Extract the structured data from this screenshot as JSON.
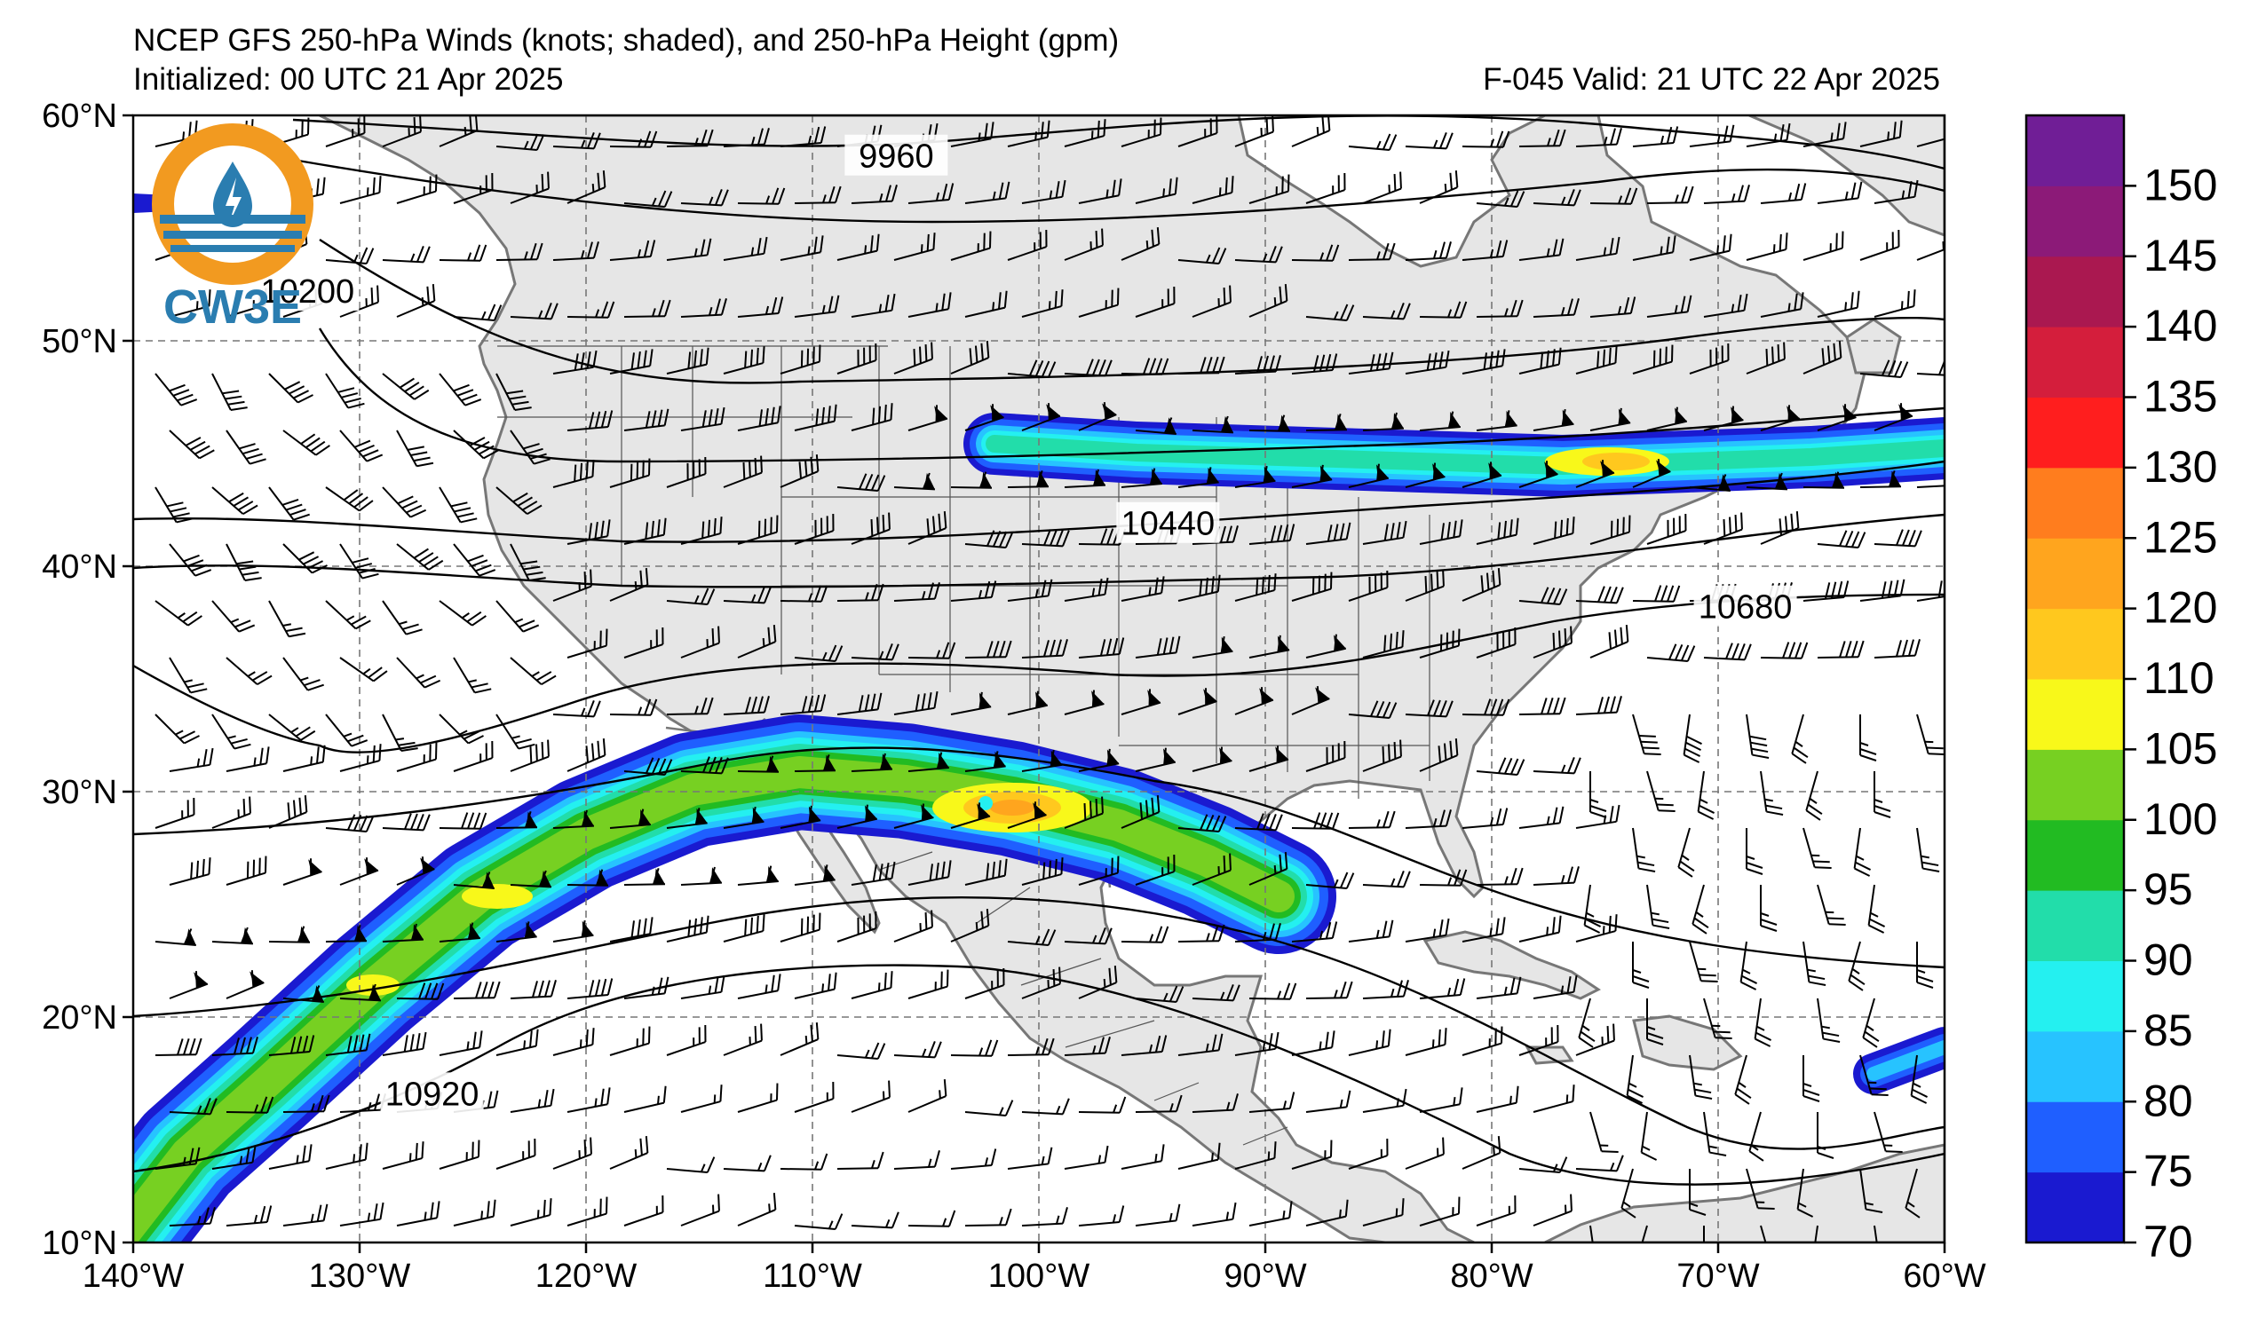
{
  "header": {
    "title": "NCEP GFS 250-hPa Winds (knots; shaded), and 250-hPa Height (gpm)",
    "initialized": "Initialized: 00 UTC 21 Apr 2025",
    "valid": "F-045  Valid: 21 UTC 22 Apr 2025"
  },
  "logo": {
    "text": "CW3E"
  },
  "map": {
    "lon_range": [
      -140,
      -60
    ],
    "lat_range": [
      10,
      60
    ],
    "lon_ticks": [
      {
        "value": -140,
        "label": "140°W"
      },
      {
        "value": -130,
        "label": "130°W"
      },
      {
        "value": -120,
        "label": "120°W"
      },
      {
        "value": -110,
        "label": "110°W"
      },
      {
        "value": -100,
        "label": "100°W"
      },
      {
        "value": -90,
        "label": "90°W"
      },
      {
        "value": -80,
        "label": "80°W"
      },
      {
        "value": -70,
        "label": "70°W"
      },
      {
        "value": -60,
        "label": "60°W"
      }
    ],
    "lat_ticks": [
      {
        "value": 60,
        "label": "60°N"
      },
      {
        "value": 50,
        "label": "50°N"
      },
      {
        "value": 40,
        "label": "40°N"
      },
      {
        "value": 30,
        "label": "30°N"
      },
      {
        "value": 20,
        "label": "20°N"
      },
      {
        "value": 10,
        "label": "10°N"
      }
    ],
    "gridlines": "dashed",
    "land_color": "#e6e6e6",
    "ocean_color": "#ffffff",
    "height_contour_labels": [
      {
        "value": "9960",
        "lon": -106.3,
        "lat": 58.2
      },
      {
        "value": "10200",
        "lon": -132.3,
        "lat": 52.2
      },
      {
        "value": "10440",
        "lon": -94.3,
        "lat": 41.9
      },
      {
        "value": "10680",
        "lon": -68.8,
        "lat": 38.2
      },
      {
        "value": "10920",
        "lon": -126.8,
        "lat": 16.6
      }
    ]
  },
  "colorbar": {
    "levels": [
      70,
      75,
      80,
      85,
      90,
      95,
      100,
      105,
      110,
      120,
      125,
      130,
      135,
      140,
      145,
      150,
      155
    ],
    "colors": [
      "#1a1ad0",
      "#1f5fff",
      "#27c3ff",
      "#24f0f0",
      "#22ddaa",
      "#22bb22",
      "#77d022",
      "#f8f81a",
      "#ffc81e",
      "#ffa51e",
      "#ff7d1e",
      "#ff1e1e",
      "#d41e3c",
      "#aa1850",
      "#8c1a78",
      "#701e96"
    ],
    "labels": [
      "70",
      "75",
      "80",
      "85",
      "90",
      "95",
      "100",
      "105",
      "110",
      "120",
      "125",
      "130",
      "135",
      "140",
      "145",
      "150"
    ]
  }
}
